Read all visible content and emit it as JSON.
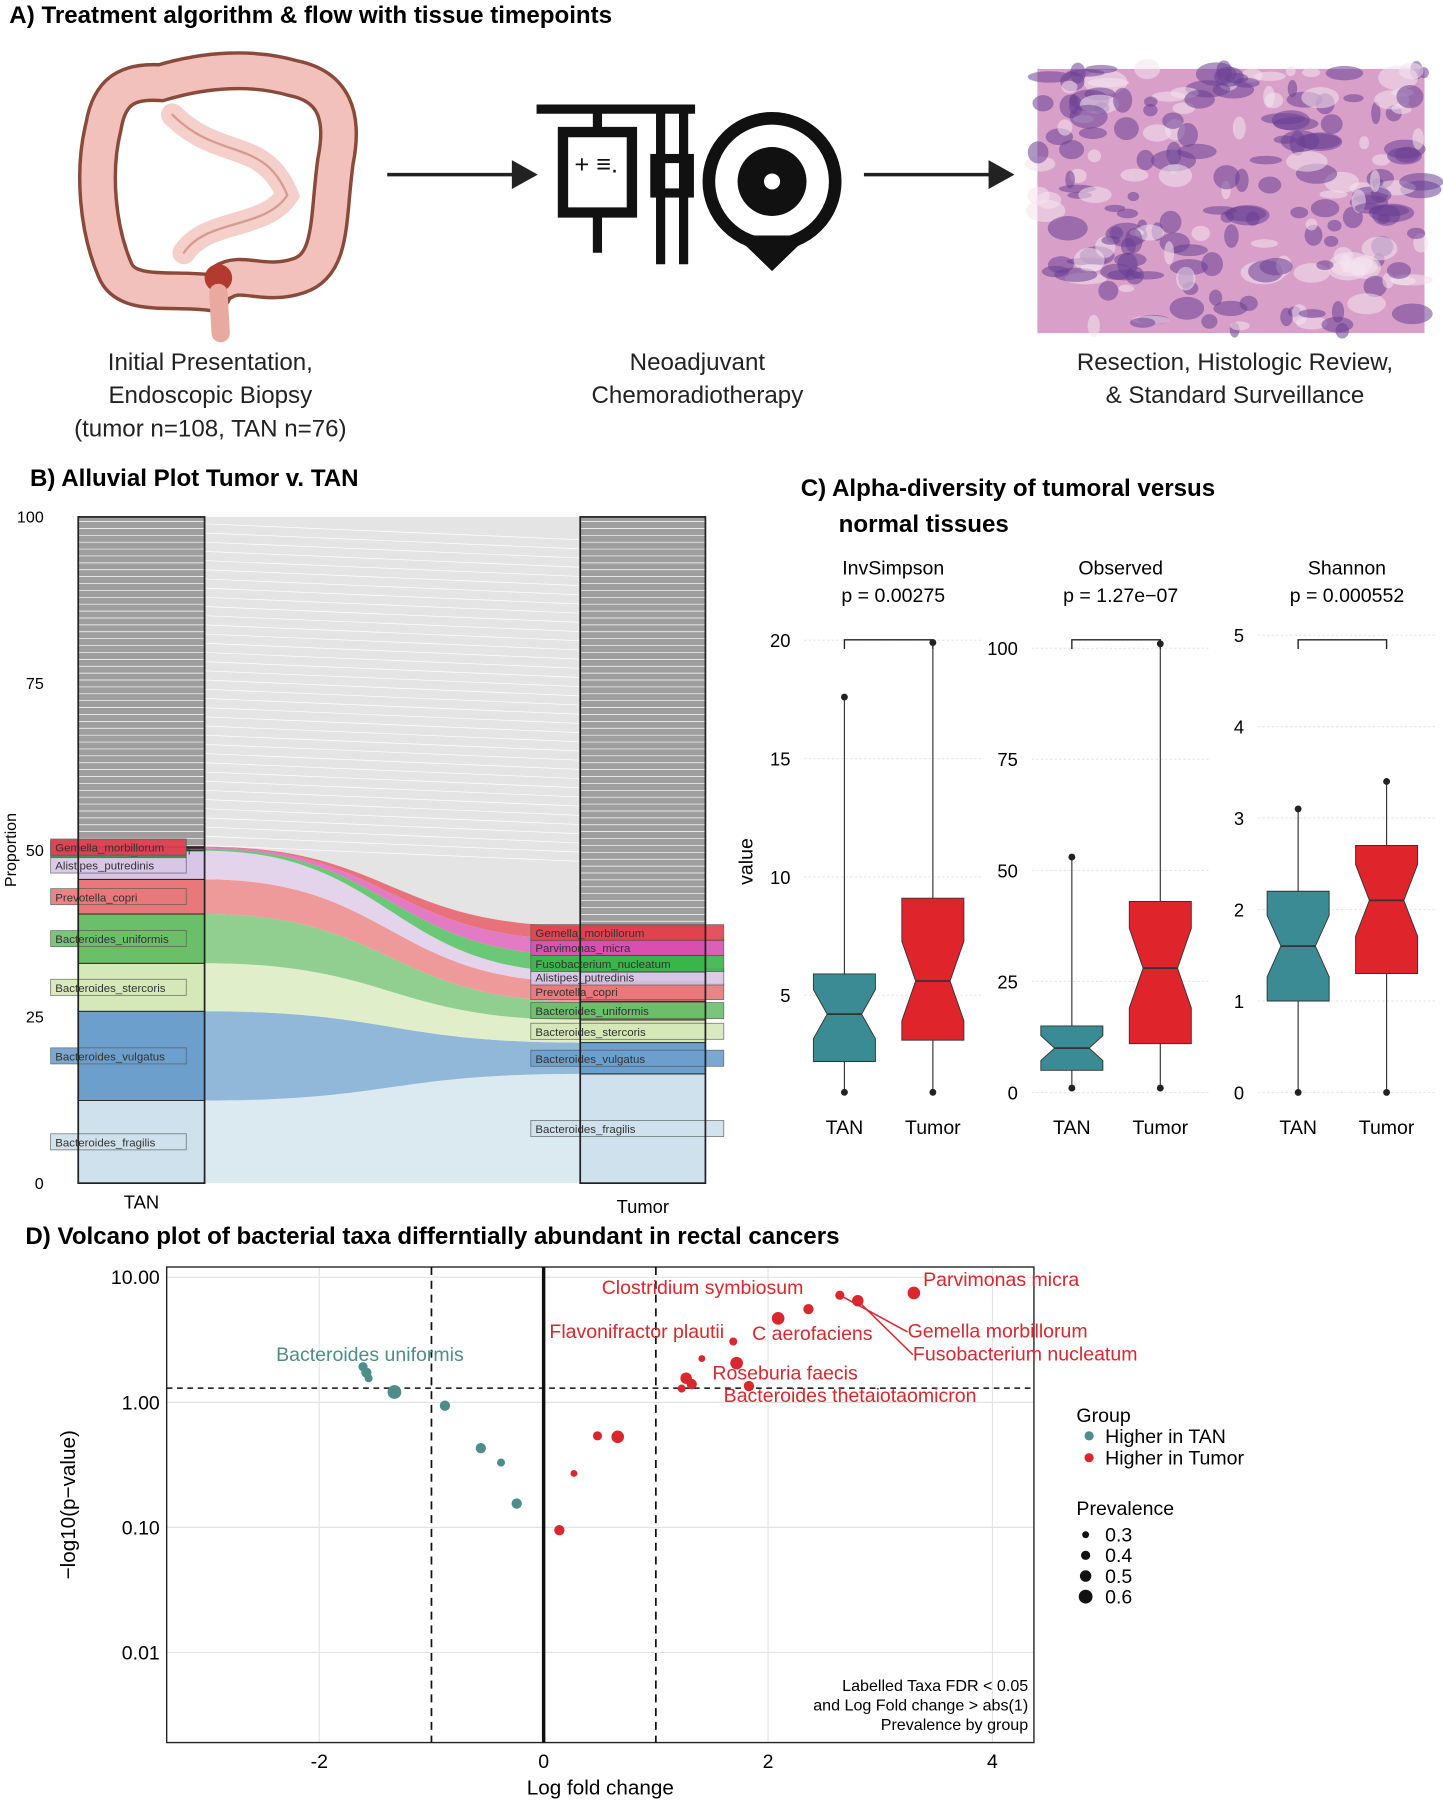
{
  "panel_a": {
    "title": "A)  Treatment algorithm & flow with tissue timepoints",
    "steps": [
      {
        "caption": [
          "Initial Presentation,",
          "Endoscopic Biopsy",
          "(tumor n=108, TAN n=76)"
        ]
      },
      {
        "caption": [
          "Neoadjuvant",
          "Chemoradiotherapy"
        ]
      },
      {
        "caption": [
          "Resection, Histologic Review,",
          "& Standard Surveillance"
        ]
      }
    ]
  },
  "chart_data": [
    {
      "type": "alluvial",
      "title": "B) Alluvial Plot Tumor v. TAN",
      "y_label": "Proportion",
      "categories": [
        "TAN",
        "Tumor"
      ],
      "ylim": [
        0,
        100
      ],
      "yticks": [
        0,
        25,
        50,
        75,
        100
      ],
      "series": [
        {
          "name": "Bacteroides_fragilis",
          "color": "#cfe1ec",
          "values": [
            12.4,
            16.4
          ]
        },
        {
          "name": "Bacteroides_vulgatus",
          "color": "#6c9fcc",
          "values": [
            13.4,
            4.7
          ]
        },
        {
          "name": "Bacteroides_stercoris",
          "color": "#d5e8b8",
          "values": [
            7.2,
            3.4
          ]
        },
        {
          "name": "Bacteroides_uniformis",
          "color": "#6bbf6b",
          "values": [
            7.4,
            2.8
          ]
        },
        {
          "name": "Prevotella_copri",
          "color": "#e8787a",
          "values": [
            5.2,
            2.9
          ]
        },
        {
          "name": "Alistipes_putredinis",
          "color": "#d9c6e6",
          "values": [
            4.3,
            1.5
          ]
        },
        {
          "name": "Fusobacterium_nucleatum",
          "color": "#39b54a",
          "values": [
            0.3,
            2.5
          ]
        },
        {
          "name": "Parvimonas_micra",
          "color": "#d94fb0",
          "values": [
            0.2,
            2.4
          ]
        },
        {
          "name": "Gemella_morbillorum",
          "color": "#e0434d",
          "values": [
            0.1,
            2.0
          ]
        }
      ]
    },
    {
      "type": "box",
      "title": [
        "C) Alpha-diversity of tumoral versus",
        "normal tissues"
      ],
      "y_label": "value",
      "colors": [
        "#3a8b93",
        "#e0242b"
      ],
      "facets": [
        {
          "name": "InvSimpson",
          "p_label": "p = 0.00275",
          "categories": [
            "TAN",
            "Tumor"
          ],
          "ylim": [
            0.7,
            20.6
          ],
          "yticks": [
            5,
            10,
            15,
            20
          ],
          "boxes": [
            {
              "min": 0.9,
              "q1": 2.2,
              "median": 4.2,
              "q3": 5.9,
              "max": 17.6
            },
            {
              "min": 0.9,
              "q1": 3.1,
              "median": 5.6,
              "q3": 9.1,
              "max": 19.9
            }
          ]
        },
        {
          "name": "Observed",
          "p_label": "p = 1.27e−07",
          "categories": [
            "TAN",
            "Tumor"
          ],
          "ylim": [
            -1,
            105
          ],
          "yticks": [
            0,
            25,
            50,
            75,
            100
          ],
          "boxes": [
            {
              "min": 1,
              "q1": 5,
              "median": 10,
              "q3": 15,
              "max": 53
            },
            {
              "min": 1,
              "q1": 11,
              "median": 28,
              "q3": 43,
              "max": 101
            }
          ]
        },
        {
          "name": "Shannon",
          "p_label": "p = 0.000552",
          "categories": [
            "TAN",
            "Tumor"
          ],
          "ylim": [
            -0.05,
            5.1
          ],
          "yticks": [
            0,
            1,
            2,
            3,
            4,
            5
          ],
          "boxes": [
            {
              "min": 0,
              "q1": 1.0,
              "median": 1.6,
              "q3": 2.2,
              "max": 3.1
            },
            {
              "min": 0,
              "q1": 1.3,
              "median": 2.1,
              "q3": 2.7,
              "max": 3.4
            }
          ]
        }
      ]
    },
    {
      "type": "scatter",
      "title": "D) Volcano plot of bacterial taxa differntially abundant in rectal cancers",
      "x_label": "Log fold change",
      "y_label": "−log10(p−value)",
      "log_y": true,
      "grid": true,
      "xlim": [
        -3.36,
        4.37
      ],
      "ylim": [
        0.0019,
        12.1
      ],
      "xticks": [
        -2,
        0,
        2,
        4
      ],
      "yticks": [
        {
          "value": 0.01,
          "label": "0.01"
        },
        {
          "value": 0.1,
          "label": "0.10"
        },
        {
          "value": 1,
          "label": "1.00"
        },
        {
          "value": 10,
          "label": "10.00"
        }
      ],
      "ref_lines_x": [
        -1,
        0,
        1
      ],
      "ref_line_y": 1.3,
      "legend_title": "Group",
      "series": [
        {
          "name": "Higher in TAN",
          "color": "#4d8d8a",
          "x": [
            -1.61,
            -1.58,
            -1.56,
            -1.33,
            -0.88,
            -0.56,
            -0.38,
            -0.24
          ],
          "values": [
            1.93,
            1.73,
            1.56,
            1.21,
            0.94,
            0.43,
            0.33,
            0.155
          ],
          "sizes": [
            0.4,
            0.45,
            0.35,
            0.6,
            0.45,
            0.45,
            0.35,
            0.45
          ],
          "labels": [
            "Bacteroides uniformis",
            null,
            null,
            null,
            null,
            null,
            null,
            null
          ]
        },
        {
          "name": "Higher in Tumor",
          "color": "#d9272e",
          "x": [
            0.14,
            0.27,
            0.48,
            0.66,
            1.23,
            1.27,
            1.32,
            1.41,
            1.69,
            1.72,
            1.83,
            2.09,
            2.36,
            2.64,
            2.8,
            3.3
          ],
          "values": [
            0.095,
            0.27,
            0.54,
            0.53,
            1.29,
            1.56,
            1.4,
            2.24,
            3.07,
            2.06,
            1.35,
            4.7,
            5.57,
            7.2,
            6.5,
            7.5
          ],
          "sizes": [
            0.45,
            0.3,
            0.4,
            0.55,
            0.35,
            0.5,
            0.45,
            0.3,
            0.35,
            0.55,
            0.45,
            0.55,
            0.45,
            0.4,
            0.5,
            0.55
          ],
          "labels": [
            null,
            null,
            null,
            null,
            null,
            null,
            "Roseburia faecis",
            null,
            "Flavonifractor plautii",
            null,
            "Bacteroides thetaiotaomicron",
            "Clostridium symbiosum",
            "C aerofaciens",
            "Gemella morbillorum",
            "Fusobacterium nucleatum",
            "Parvimonas micra"
          ]
        }
      ],
      "size_legend": {
        "title": "Prevalence",
        "values": [
          0.3,
          0.4,
          0.5,
          0.6
        ]
      },
      "note": [
        "Labelled Taxa FDR < 0.05",
        "and Log Fold change > abs(1)",
        "Prevalence by group"
      ]
    }
  ]
}
